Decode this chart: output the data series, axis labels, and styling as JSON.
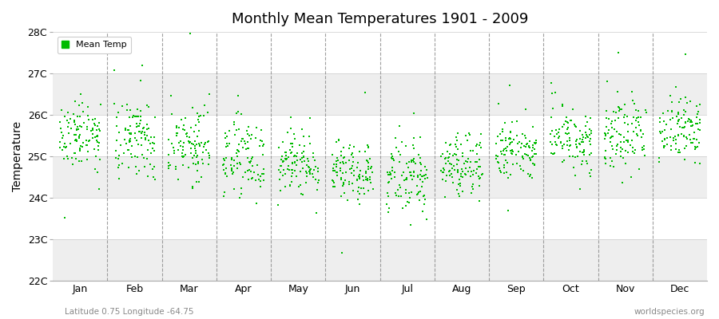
{
  "title": "Monthly Mean Temperatures 1901 - 2009",
  "ylabel": "Temperature",
  "xlabel_months": [
    "Jan",
    "Feb",
    "Mar",
    "Apr",
    "May",
    "Jun",
    "Jul",
    "Aug",
    "Sep",
    "Oct",
    "Nov",
    "Dec"
  ],
  "ytick_labels": [
    "22C",
    "23C",
    "24C",
    "25C",
    "26C",
    "27C",
    "28C"
  ],
  "ytick_values": [
    22,
    23,
    24,
    25,
    26,
    27,
    28
  ],
  "ylim": [
    22,
    28
  ],
  "legend_label": "Mean Temp",
  "marker_color": "#00bb00",
  "marker_size": 4,
  "footer_left": "Latitude 0.75 Longitude -64.75",
  "footer_right": "worldspecies.org",
  "n_years": 109,
  "month_means": [
    25.5,
    25.4,
    25.3,
    25.0,
    24.8,
    24.6,
    24.5,
    24.8,
    25.1,
    25.4,
    25.6,
    25.7
  ],
  "month_stds": [
    0.4,
    0.48,
    0.45,
    0.42,
    0.38,
    0.38,
    0.45,
    0.38,
    0.35,
    0.4,
    0.45,
    0.42
  ],
  "band_colors_even": "#eeeeee",
  "band_colors_odd": "#f8f8f8",
  "background_color": "#ffffff",
  "plot_bg": "#ffffff"
}
